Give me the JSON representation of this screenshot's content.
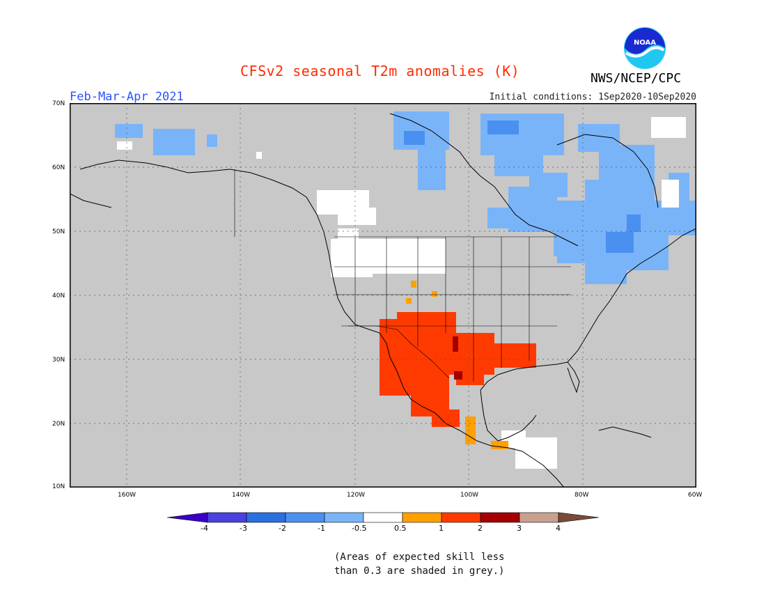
{
  "header": {
    "title": "CFSv2 seasonal T2m anomalies (K)",
    "period": "Feb-Mar-Apr 2021",
    "initial_conditions": "Initial conditions: 1Sep2020-10Sep2020",
    "agency": "NWS/NCEP/CPC",
    "logo_text": "NOAA"
  },
  "axes": {
    "lat_labels": [
      "70N",
      "60N",
      "50N",
      "40N",
      "30N",
      "20N",
      "10N"
    ],
    "lon_labels": [
      "160W",
      "140W",
      "120W",
      "100W",
      "80W",
      "60W"
    ]
  },
  "legend": {
    "ticks": [
      "-4",
      "-3",
      "-2",
      "-1",
      "-0.5",
      "0.5",
      "1",
      "2",
      "3",
      "4"
    ],
    "colors": [
      "#3a00c8",
      "#4b40e0",
      "#2a70e0",
      "#4a90f0",
      "#7ab4f8",
      "#ffffff",
      "#ffa000",
      "#ff3a00",
      "#a50000",
      "#c8a090",
      "#7a4a3a"
    ]
  },
  "note": {
    "line1": "(Areas of expected skill less",
    "line2": "than 0.3 are shaded in grey.)"
  },
  "colors": {
    "land_background": "#c8c8c8",
    "title": "#ff2a00",
    "period": "#2b50ff"
  }
}
